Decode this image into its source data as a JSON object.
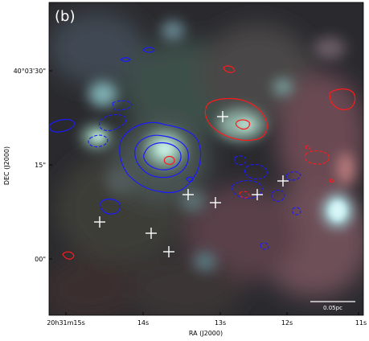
{
  "figure": {
    "panel_label": "(b)",
    "x_axis": {
      "label": "RA (J2000)",
      "ticks": [
        "20h31m15s",
        "14s",
        "13s",
        "12s",
        "11s"
      ]
    },
    "y_axis": {
      "label": "DEC (J2000)",
      "ticks": [
        "40°03'30\"",
        "15\"",
        "00\""
      ]
    },
    "scalebar": {
      "label": "0.05pc"
    },
    "colors": {
      "blue_contour": "#1a1aff",
      "red_contour": "#ff1a1a",
      "cross_marker": "#ffffff"
    }
  }
}
